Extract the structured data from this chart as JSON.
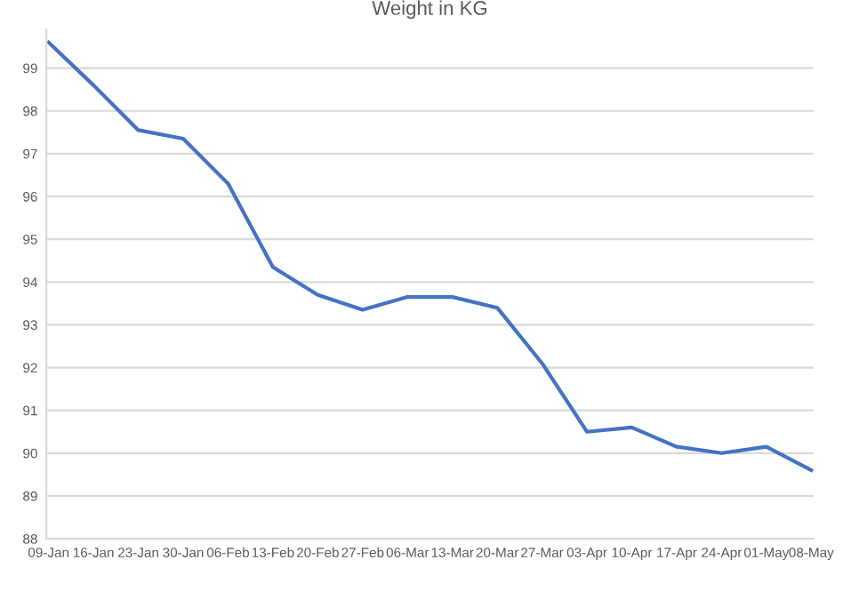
{
  "chart_data": {
    "type": "line",
    "title": "Weight in KG",
    "categories": [
      "09-Jan",
      "16-Jan",
      "23-Jan",
      "30-Jan",
      "06-Feb",
      "13-Feb",
      "20-Feb",
      "27-Feb",
      "06-Mar",
      "13-Mar",
      "20-Mar",
      "27-Mar",
      "03-Apr",
      "10-Apr",
      "17-Apr",
      "24-Apr",
      "01-May",
      "08-May"
    ],
    "series": [
      {
        "color": "#4472c4",
        "values": [
          99.6,
          98.6,
          97.55,
          97.35,
          96.3,
          94.35,
          93.7,
          93.35,
          93.65,
          93.65,
          93.4,
          92.1,
          90.5,
          90.6,
          90.15,
          90.0,
          90.15,
          89.6
        ]
      }
    ],
    "ylim": [
      88,
      99.9
    ],
    "yticks": [
      88,
      89,
      90,
      91,
      92,
      93,
      94,
      95,
      96,
      97,
      98,
      99
    ],
    "grid": "y",
    "legend": false,
    "marker": "none",
    "line_style": "solid"
  }
}
